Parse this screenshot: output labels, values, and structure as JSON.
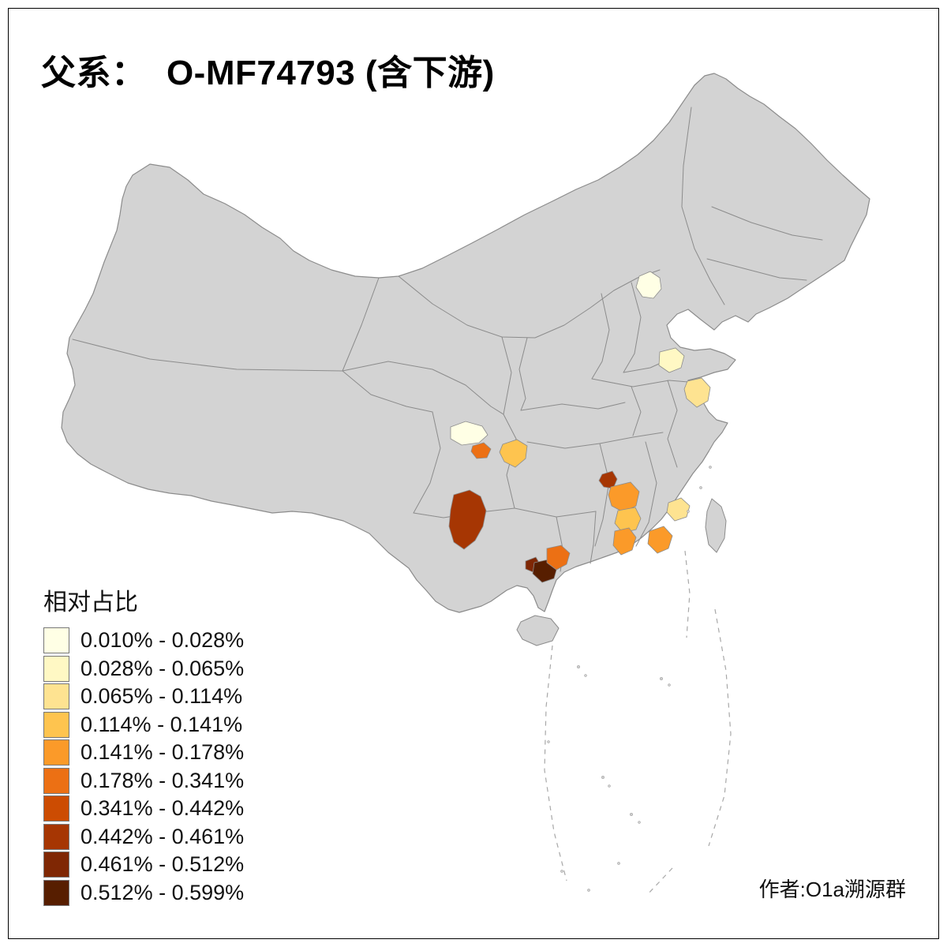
{
  "page": {
    "title": "父系：  O-MF74793 (含下游)",
    "author": "作者:O1a溯源群",
    "background_color": "#FFFFFF",
    "frame_color": "#000000"
  },
  "legend": {
    "title": "相对占比",
    "items": [
      {
        "label": "0.010% - 0.028%",
        "color": "#FFFFE5"
      },
      {
        "label": "0.028% - 0.065%",
        "color": "#FFF8C4"
      },
      {
        "label": "0.065% - 0.114%",
        "color": "#FEE391"
      },
      {
        "label": "0.114% - 0.141%",
        "color": "#FEC44F"
      },
      {
        "label": "0.141% - 0.178%",
        "color": "#FB9A29"
      },
      {
        "label": "0.178% - 0.341%",
        "color": "#EC7014"
      },
      {
        "label": "0.341% - 0.442%",
        "color": "#CC4C02"
      },
      {
        "label": "0.442% - 0.461%",
        "color": "#A63603"
      },
      {
        "label": "0.461% - 0.512%",
        "color": "#7F2704"
      },
      {
        "label": "0.512% - 0.599%",
        "color": "#571E00"
      }
    ]
  },
  "map": {
    "land_color": "#D3D3D3",
    "border_color": "#8C8C8C",
    "island_dash_color": "#A8A8A8",
    "regions": [
      {
        "id": "beijing",
        "color": "#FFFFE5"
      },
      {
        "id": "west-shandong",
        "color": "#FFF8C4"
      },
      {
        "id": "central-jiangsu",
        "color": "#FEE391"
      },
      {
        "id": "central-sichuan",
        "color": "#FFFFE5"
      },
      {
        "id": "south-sichuan",
        "color": "#EC7014"
      },
      {
        "id": "chongqing",
        "color": "#FEC44F"
      },
      {
        "id": "central-yunnan",
        "color": "#A63603"
      },
      {
        "id": "northwest-guangxi",
        "color": "#7F2704"
      },
      {
        "id": "west-guangxi",
        "color": "#571E00"
      },
      {
        "id": "central-guangxi",
        "color": "#EC7014"
      },
      {
        "id": "north-hunan-jiangxi",
        "color": "#A63603"
      },
      {
        "id": "west-jiangxi",
        "color": "#FB9A29"
      },
      {
        "id": "central-jiangxi",
        "color": "#FEC44F"
      },
      {
        "id": "south-jiangxi",
        "color": "#FB9A29"
      },
      {
        "id": "northeast-fujian",
        "color": "#FEE391"
      },
      {
        "id": "southwest-fujian",
        "color": "#FB9A29"
      }
    ]
  }
}
